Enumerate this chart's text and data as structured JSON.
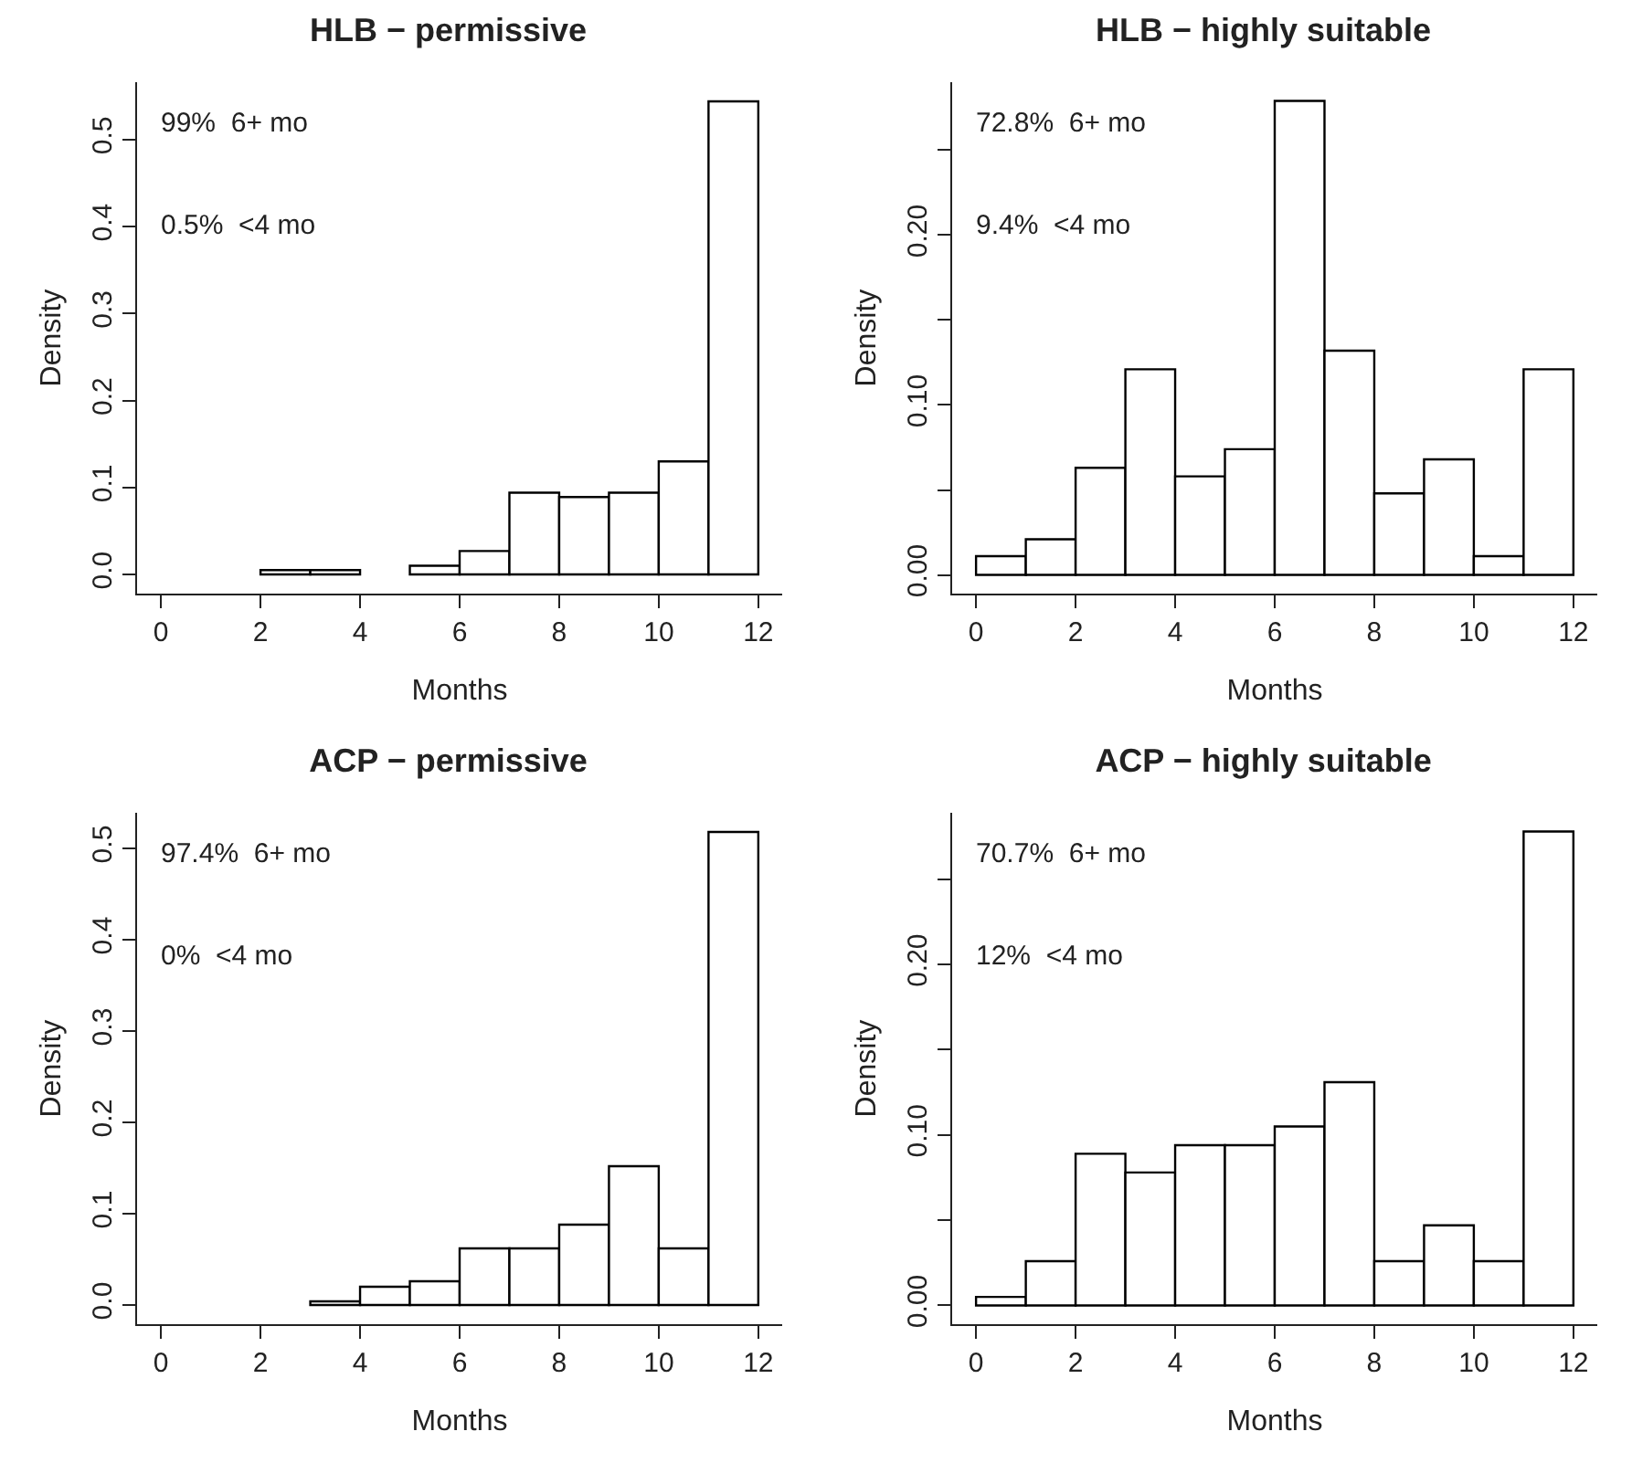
{
  "chart_data": [
    {
      "type": "histogram",
      "title": "HLB − permissive",
      "xlabel": "Months",
      "ylabel": "Density",
      "bins": [
        0,
        1,
        2,
        3,
        4,
        5,
        6,
        7,
        8,
        9,
        10,
        11,
        12
      ],
      "values": [
        0,
        0,
        0.005,
        0.005,
        0,
        0.01,
        0.027,
        0.094,
        0.089,
        0.094,
        0.13,
        0.544
      ],
      "color": "#ffffff",
      "xlim": [
        -0.48,
        12.48
      ],
      "xticks": [
        0,
        2,
        4,
        6,
        8,
        10,
        12
      ],
      "ylim": [
        -0.022,
        0.566
      ],
      "yticks": [
        {
          "value": 0,
          "label": "0.0"
        },
        0.1,
        0.2,
        0.3,
        0.4,
        0.5
      ],
      "annotations": [
        "99%  6+ mo",
        "0.5%  <4 mo"
      ]
    },
    {
      "type": "histogram",
      "title": "HLB − highly suitable",
      "xlabel": "Months",
      "ylabel": "Density",
      "bins": [
        0,
        1,
        2,
        3,
        4,
        5,
        6,
        7,
        8,
        9,
        10,
        11,
        12
      ],
      "values": [
        0.011,
        0.021,
        0.063,
        0.121,
        0.058,
        0.074,
        0.279,
        0.132,
        0.048,
        0.068,
        0.011,
        0.121
      ],
      "color": "#ffffff",
      "xlim": [
        -0.48,
        12.48
      ],
      "xticks": [
        0,
        2,
        4,
        6,
        8,
        10,
        12
      ],
      "ylim": [
        -0.011,
        0.29
      ],
      "yticks": [
        {
          "value": 0,
          "label": "0.00"
        },
        {
          "value": 0.05,
          "label": null
        },
        {
          "value": 0.1,
          "label": "0.10"
        },
        {
          "value": 0.15,
          "label": null
        },
        {
          "value": 0.2,
          "label": "0.20"
        },
        {
          "value": 0.25,
          "label": null
        }
      ],
      "annotations": [
        "72.8%  6+ mo",
        "9.4%  <4 mo"
      ]
    },
    {
      "type": "histogram",
      "title": "ACP − permissive",
      "xlabel": "Months",
      "ylabel": "Density",
      "bins": [
        0,
        1,
        2,
        3,
        4,
        5,
        6,
        7,
        8,
        9,
        10,
        11,
        12
      ],
      "values": [
        0,
        0,
        0,
        0.004,
        0.02,
        0.026,
        0.062,
        0.062,
        0.088,
        0.152,
        0.062,
        0.518
      ],
      "color": "#ffffff",
      "xlim": [
        -0.48,
        12.48
      ],
      "xticks": [
        0,
        2,
        4,
        6,
        8,
        10,
        12
      ],
      "ylim": [
        -0.021,
        0.539
      ],
      "yticks": [
        {
          "value": 0,
          "label": "0.0"
        },
        0.1,
        0.2,
        0.3,
        0.4,
        0.5
      ],
      "annotations": [
        "97.4%  6+ mo",
        "0%  <4 mo"
      ]
    },
    {
      "type": "histogram",
      "title": "ACP − highly suitable",
      "xlabel": "Months",
      "ylabel": "Density",
      "bins": [
        0,
        1,
        2,
        3,
        4,
        5,
        6,
        7,
        8,
        9,
        10,
        11,
        12
      ],
      "values": [
        0.005,
        0.026,
        0.089,
        0.078,
        0.094,
        0.094,
        0.105,
        0.131,
        0.026,
        0.047,
        0.026,
        0.278
      ],
      "color": "#ffffff",
      "xlim": [
        -0.48,
        12.48
      ],
      "xticks": [
        0,
        2,
        4,
        6,
        8,
        10,
        12
      ],
      "ylim": [
        -0.011,
        0.289
      ],
      "yticks": [
        {
          "value": 0,
          "label": "0.00"
        },
        {
          "value": 0.05,
          "label": null
        },
        {
          "value": 0.1,
          "label": "0.10"
        },
        {
          "value": 0.15,
          "label": null
        },
        {
          "value": 0.2,
          "label": "0.20"
        },
        {
          "value": 0.25,
          "label": null
        }
      ],
      "annotations": [
        "70.7%  6+ mo",
        "12%  <4 mo"
      ]
    }
  ]
}
